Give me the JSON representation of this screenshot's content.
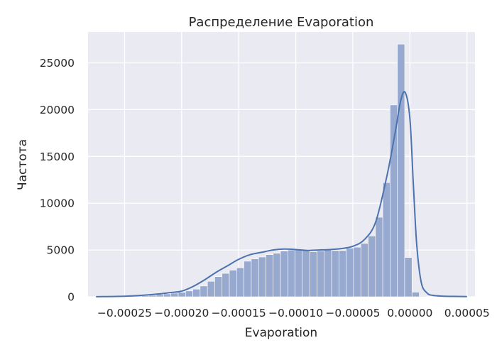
{
  "chart_data": {
    "type": "bar",
    "title": "Распределение Evaporation",
    "xlabel": "Evaporation",
    "ylabel": "Частота",
    "xlim": [
      -0.000282,
      5.7e-05
    ],
    "ylim": [
      0,
      28300
    ],
    "x_ticks": [
      -0.00025,
      -0.0002,
      -0.00015,
      -0.0001,
      -5e-05,
      0.0,
      5e-05
    ],
    "x_tick_labels": [
      "−0.00025",
      "−0.00020",
      "−0.00015",
      "−0.00010",
      "−0.00005",
      "0.00000",
      "0.00005"
    ],
    "y_ticks": [
      0,
      5000,
      10000,
      15000,
      20000,
      25000
    ],
    "y_tick_labels": [
      "0",
      "5000",
      "10000",
      "15000",
      "20000",
      "25000"
    ],
    "grid": true,
    "bin_start": -0.000267,
    "bin_width": 6.4e-06,
    "values": [
      10,
      20,
      30,
      60,
      80,
      110,
      150,
      230,
      310,
      380,
      470,
      620,
      820,
      1150,
      1650,
      2150,
      2500,
      2850,
      3100,
      3800,
      4050,
      4250,
      4500,
      4650,
      4900,
      5000,
      5050,
      4950,
      4800,
      4900,
      5000,
      4950,
      4950,
      5200,
      5300,
      5700,
      6500,
      8500,
      12200,
      20500,
      27000,
      4200,
      500,
      60,
      20,
      10,
      5,
      3,
      2,
      1
    ],
    "kde": {
      "x": [
        -0.000275,
        -0.00025,
        -0.000235,
        -0.00022,
        -0.00021,
        -0.0002,
        -0.00019,
        -0.00018,
        -0.00017,
        -0.00016,
        -0.00015,
        -0.00014,
        -0.00013,
        -0.00012,
        -0.00011,
        -0.0001,
        -9e-05,
        -8e-05,
        -7e-05,
        -6e-05,
        -5e-05,
        -4e-05,
        -3e-05,
        -2e-05,
        -1.3e-05,
        -8e-06,
        -4e-06,
        0.0,
        3e-06,
        6e-06,
        1e-05,
        1.5e-05,
        2e-05,
        3e-05,
        5e-05
      ],
      "y": [
        10,
        60,
        150,
        300,
        450,
        600,
        1100,
        1800,
        2600,
        3300,
        4000,
        4500,
        4750,
        5000,
        5100,
        5050,
        4950,
        5000,
        5050,
        5150,
        5400,
        6100,
        8000,
        13000,
        17500,
        21000,
        21800,
        19000,
        12000,
        5500,
        1500,
        400,
        150,
        60,
        20
      ]
    },
    "colors": {
      "bar": "#97a9cf",
      "line": "#4c72b0",
      "background": "#eaeaf2"
    }
  }
}
